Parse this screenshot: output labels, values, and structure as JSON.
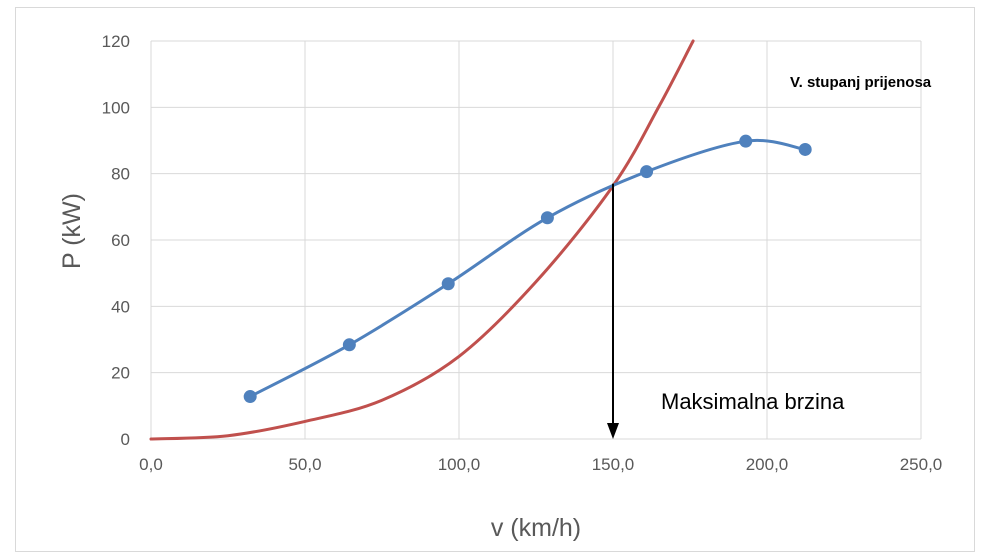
{
  "chart_data": {
    "type": "line",
    "xlabel": "v (km/h)",
    "ylabel": "P (kW)",
    "xlim": [
      0,
      250
    ],
    "ylim": [
      0,
      120
    ],
    "x_ticks": [
      0,
      50,
      100,
      150,
      200,
      250
    ],
    "x_tick_labels": [
      "0,0",
      "50,0",
      "100,0",
      "150,0",
      "200,0",
      "250,0"
    ],
    "y_ticks": [
      0,
      20,
      40,
      60,
      80,
      100,
      120
    ],
    "y_tick_labels": [
      "0",
      "20",
      "40",
      "60",
      "80",
      "100",
      "120"
    ],
    "grid": true,
    "legend": "none",
    "series": [
      {
        "color": "#4f81bd",
        "markers": true,
        "smooth": true,
        "x": [
          32.2,
          64.4,
          96.5,
          128.7,
          160.9,
          193.1,
          212.4
        ],
        "y": [
          12.8,
          28.4,
          46.8,
          66.7,
          80.6,
          89.8,
          87.3
        ]
      },
      {
        "color": "#c0504d",
        "markers": false,
        "smooth": true,
        "x": [
          0,
          25,
          50,
          75,
          100,
          125,
          150,
          165,
          176
        ],
        "y": [
          0,
          1.0,
          5.3,
          11.7,
          24.9,
          47.4,
          76.3,
          100.4,
          120
        ]
      }
    ],
    "annotations": [
      {
        "text": "V. stupanj prijenosa"
      },
      {
        "text": "Maksimalna brzina"
      }
    ],
    "arrow": {
      "x": 150,
      "y_from": 77,
      "y_to": 0
    }
  }
}
